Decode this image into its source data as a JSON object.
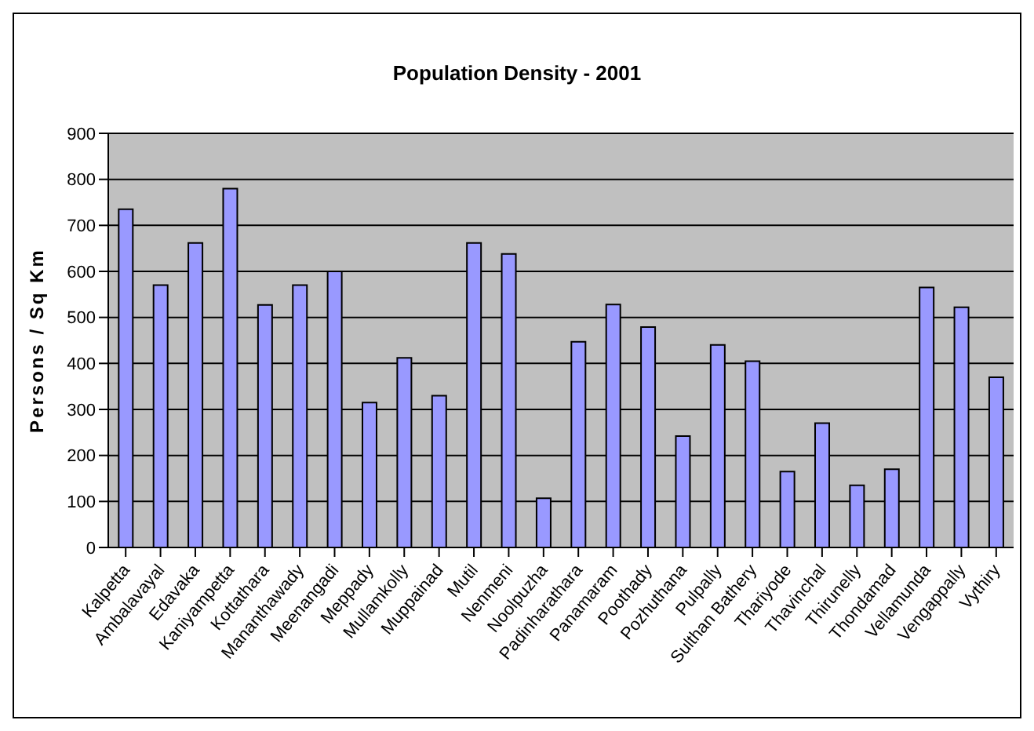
{
  "chart_data": {
    "type": "bar",
    "title": "Population Density - 2001",
    "ylabel": "Persons / Sq Km",
    "categories": [
      "Kalpetta",
      "Ambalavayal",
      "Edavaka",
      "Kaniyampetta",
      "Kottathara",
      "Mananthawady",
      "Meenangadi",
      "Meppady",
      "Mullamkolly",
      "Muppainad",
      "Mutil",
      "Nenmeni",
      "Noolpuzha",
      "Padinharathara",
      "Panamaram",
      "Poothady",
      "Pozhuthana",
      "Pulpally",
      "Sulthan Bathery",
      "Thariyode",
      "Thavinchal",
      "Thirunelly",
      "Thondamad",
      "Vellamunda",
      "Vengappally",
      "Vythiry"
    ],
    "values": [
      735,
      570,
      662,
      780,
      527,
      570,
      600,
      315,
      412,
      330,
      662,
      638,
      107,
      447,
      528,
      479,
      242,
      440,
      405,
      165,
      270,
      135,
      170,
      565,
      522,
      370
    ],
    "color": "#9999ff",
    "ylim": [
      0,
      900
    ],
    "yticks": [
      0,
      100,
      200,
      300,
      400,
      500,
      600,
      700,
      800,
      900
    ],
    "grid": "y",
    "legend": false
  }
}
